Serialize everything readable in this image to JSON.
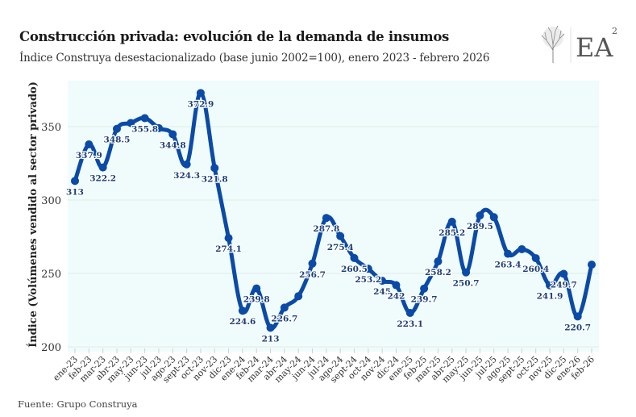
{
  "header": {
    "title": "Construcción privada: evolución de la demanda de insumos",
    "subtitle": "Índice Construya desestacionalizado (base junio 2002=100), enero 2023 - febrero 2026"
  },
  "logo": {
    "icon": "tree-icon",
    "text": "EA",
    "superscript": "2"
  },
  "footer": {
    "source": "Fuente: Grupo Construya"
  },
  "colors": {
    "line": "#0b4aa6",
    "label": "#1b3f7a",
    "panel": "#f0fcfb",
    "grid": "#dcecea"
  },
  "chart_data": {
    "type": "line",
    "title": "Construcción privada: evolución de la demanda de insumos",
    "subtitle": "Índice Construya desestacionalizado (base junio 2002=100), enero 2023 - febrero 2026",
    "xlabel": "",
    "ylabel": "Índice (Volúmenes vendido al sector privado)",
    "ylim": [
      200,
      375
    ],
    "yticks": [
      200,
      250,
      300,
      350
    ],
    "grid": true,
    "legend": "none",
    "categories": [
      "ene-23",
      "feb-23",
      "mar-23",
      "abr-23",
      "may-23",
      "jun-23",
      "jul-23",
      "ago-23",
      "sept-23",
      "oct-23",
      "nov-23",
      "dic-23",
      "ene-24",
      "feb-24",
      "mar-24",
      "abr-24",
      "may-24",
      "jun-24",
      "jul-24",
      "ago-24",
      "sept-24",
      "oct-24",
      "nov-24",
      "dic-24",
      "ene-25",
      "feb-25",
      "mar-25",
      "abr-25",
      "may-25",
      "jun-25",
      "jul-25",
      "ago-25",
      "sept-25",
      "oct-25",
      "nov-25",
      "dic-25",
      "ene-26",
      "feb-26"
    ],
    "series": [
      {
        "name": "Índice Construya",
        "values": [
          313,
          337.9,
          322.2,
          348.5,
          352.5,
          355.8,
          349.0,
          344.8,
          324.3,
          372.9,
          321.8,
          274.1,
          224.6,
          239.8,
          213,
          226.7,
          234.5,
          256.7,
          287.8,
          275.4,
          260.5,
          253.2,
          245,
          242,
          223.1,
          239.7,
          258.2,
          285.2,
          250.7,
          289.5,
          288.3,
          263.4,
          266.5,
          260.4,
          241.9,
          249.7,
          220.7,
          256.0
        ],
        "labels": [
          "313",
          "337.9",
          "322.2",
          "348.5",
          null,
          "355.8",
          null,
          "344.8",
          "324.3",
          "372.9",
          "321.8",
          "274.1",
          "224.6",
          "239.8",
          "213",
          "226.7",
          null,
          "256.7",
          "287.8",
          "275.4",
          "260.5",
          "253.2",
          "245",
          "242",
          "223.1",
          "239.7",
          "258.2",
          "285.2",
          "250.7",
          "289.5",
          null,
          "263.4",
          null,
          "260.4",
          "241.9",
          "249.7",
          "220.7",
          null
        ]
      }
    ]
  }
}
